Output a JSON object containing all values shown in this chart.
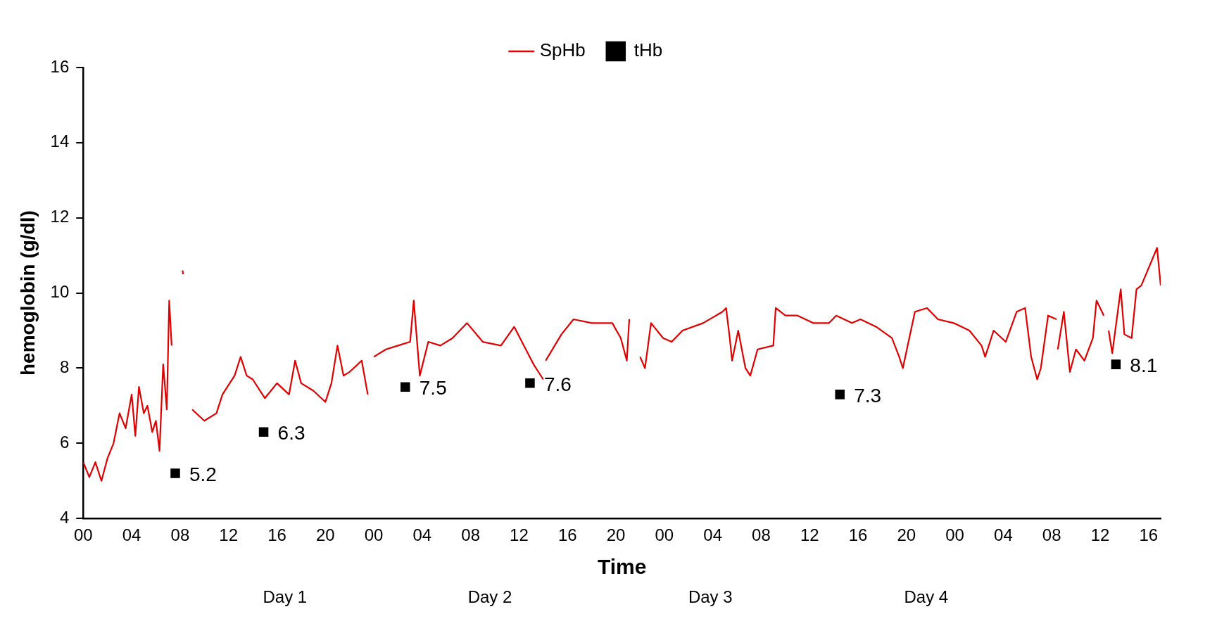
{
  "chart_data": {
    "type": "line",
    "xlabel": "Time",
    "ylabel": "hemoglobin (g/dl)",
    "legend": "top",
    "grid": false,
    "xlim": [
      0,
      89
    ],
    "ylim": [
      4,
      16
    ],
    "yticks": [
      4,
      6,
      8,
      10,
      12,
      14,
      16
    ],
    "xticks": [
      {
        "value": 0,
        "label": "00"
      },
      {
        "value": 4,
        "label": "04"
      },
      {
        "value": 8,
        "label": "08"
      },
      {
        "value": 12,
        "label": "12"
      },
      {
        "value": 16,
        "label": "16"
      },
      {
        "value": 20,
        "label": "20"
      },
      {
        "value": 24,
        "label": "00"
      },
      {
        "value": 28,
        "label": "04"
      },
      {
        "value": 32,
        "label": "08"
      },
      {
        "value": 36,
        "label": "12"
      },
      {
        "value": 40,
        "label": "16"
      },
      {
        "value": 44,
        "label": "20"
      },
      {
        "value": 48,
        "label": "00"
      },
      {
        "value": 52,
        "label": "04"
      },
      {
        "value": 56,
        "label": "08"
      },
      {
        "value": 60,
        "label": "12"
      },
      {
        "value": 64,
        "label": "16"
      },
      {
        "value": 68,
        "label": "20"
      },
      {
        "value": 72,
        "label": "00"
      },
      {
        "value": 76,
        "label": "04"
      },
      {
        "value": 80,
        "label": "08"
      },
      {
        "value": 84,
        "label": "12"
      },
      {
        "value": 88,
        "label": "16"
      }
    ],
    "annotations": [
      "Day 1",
      "Day 2",
      "Day 3",
      "Day 4"
    ],
    "series": [
      {
        "name": "SpHb",
        "type": "line",
        "color": "#e00000",
        "marker": "none",
        "line_style": "solid",
        "x": [
          0,
          0.5,
          1,
          1.5,
          2,
          2.5,
          3,
          3.5,
          4,
          4.3,
          4.6,
          5,
          5.3,
          5.7,
          6,
          6.3,
          6.6,
          6.9,
          7.1,
          7.3,
          7.6,
          8.2,
          8.25,
          8.3,
          9,
          10,
          11,
          11.5,
          12.5,
          13,
          13.5,
          14,
          15,
          16,
          17,
          17.5,
          18,
          19,
          20,
          20.5,
          21,
          21.5,
          22,
          23,
          23.5,
          23.8,
          24,
          25,
          26,
          27,
          27.3,
          27.8,
          28.5,
          29.5,
          30.5,
          31.7,
          33,
          34.5,
          35.6,
          36.4,
          37.2,
          38,
          38.1,
          38.2,
          39.5,
          40.5,
          42,
          43.7,
          44.4,
          44.9,
          45.1,
          45.5,
          46,
          46.4,
          46.9,
          47.9,
          48.6,
          49.5,
          51.2,
          52.8,
          53.1,
          53.4,
          53.6,
          54.1,
          54.7,
          55.1,
          55.7,
          57,
          57.2,
          58,
          59,
          60.3,
          61.6,
          62.2,
          63.5,
          64.2,
          65.5,
          66.8,
          67.4,
          67.7,
          68.7,
          69.7,
          70.6,
          71.9,
          73.2,
          74.2,
          74.5,
          75.2,
          76.2,
          77.1,
          77.8,
          78.3,
          78.8,
          79.1,
          79.7,
          80.4,
          80.45,
          80.5,
          81,
          81.5,
          82,
          82.7,
          83.4,
          83.7,
          84.3,
          84.5,
          84.7,
          85,
          85.7,
          86,
          86.6,
          87,
          87.4,
          88.7,
          89
        ],
        "values": [
          5.5,
          5.1,
          5.5,
          5,
          5.6,
          6,
          6.8,
          6.4,
          7.3,
          6.2,
          7.5,
          6.8,
          7,
          6.3,
          6.6,
          5.8,
          8.1,
          6.9,
          9.8,
          8.6,
          null,
          10.6,
          10.5,
          null,
          6.9,
          6.6,
          6.8,
          7.3,
          7.8,
          8.3,
          7.8,
          7.7,
          7.2,
          7.6,
          7.3,
          8.2,
          7.6,
          7.4,
          7.1,
          7.6,
          8.6,
          7.8,
          7.9,
          8.2,
          7.3,
          null,
          8.3,
          8.5,
          8.6,
          8.7,
          9.8,
          7.8,
          8.7,
          8.6,
          8.8,
          9.2,
          8.7,
          8.6,
          9.1,
          8.6,
          8.1,
          7.7,
          null,
          8.2,
          8.9,
          9.3,
          9.2,
          9.2,
          8.8,
          8.2,
          9.3,
          null,
          8.3,
          8,
          9.2,
          8.8,
          8.7,
          9,
          9.2,
          9.5,
          9.6,
          8.8,
          8.2,
          9,
          8,
          7.8,
          8.5,
          8.6,
          9.6,
          9.4,
          9.4,
          9.2,
          9.2,
          9.4,
          9.2,
          9.3,
          9.1,
          8.8,
          8.3,
          8,
          9.5,
          9.6,
          9.3,
          9.2,
          9,
          8.6,
          8.3,
          9,
          8.7,
          9.5,
          9.6,
          8.3,
          7.7,
          8,
          9.4,
          9.3,
          null,
          8.5,
          9.5,
          7.9,
          8.5,
          8.2,
          8.8,
          9.8,
          9.4,
          null,
          9,
          8.4,
          10.1,
          8.9,
          8.8,
          10.1,
          10.2,
          11.2,
          10.2
        ]
      },
      {
        "name": "tHb",
        "type": "scatter",
        "color": "#000000",
        "marker": "square",
        "x": [
          7.6,
          14.9,
          26.6,
          36.9,
          62.5,
          85.3
        ],
        "values": [
          5.2,
          6.3,
          7.5,
          7.6,
          7.3,
          8.1
        ],
        "value_labels": [
          "5.2",
          "6.3",
          "7.5",
          "7.6",
          "7.3",
          "8.1"
        ]
      }
    ]
  }
}
